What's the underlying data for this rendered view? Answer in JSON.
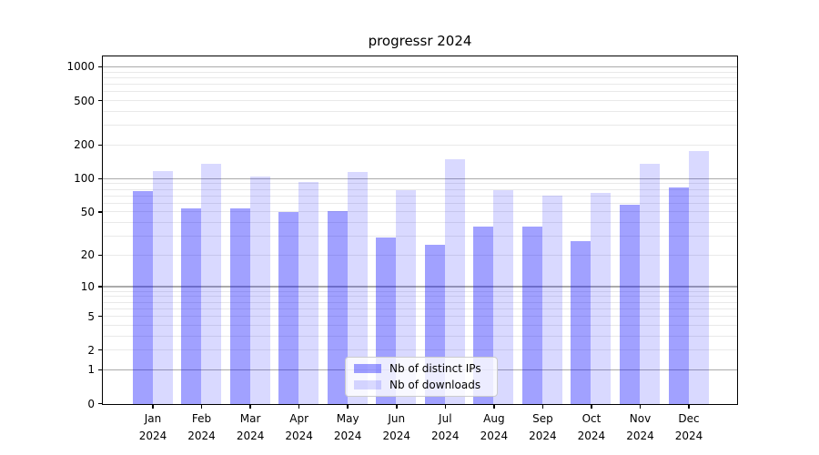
{
  "title": "progressr 2024",
  "legend": {
    "items": [
      {
        "label": "Nb of distinct IPs"
      },
      {
        "label": "Nb of downloads"
      }
    ]
  },
  "chart_data": {
    "type": "bar",
    "title": "progressr 2024",
    "categories": [
      "Jan",
      "Feb",
      "Mar",
      "Apr",
      "May",
      "Jun",
      "Jul",
      "Aug",
      "Sep",
      "Oct",
      "Nov",
      "Dec"
    ],
    "category_year": "2024",
    "series": [
      {
        "name": "Nb of distinct IPs",
        "color": "rgba(0,0,255,0.37)",
        "values": [
          77,
          54,
          54,
          50,
          51,
          29,
          25,
          37,
          37,
          27,
          58,
          83
        ]
      },
      {
        "name": "Nb of downloads",
        "color": "rgba(0,0,255,0.15)",
        "values": [
          117,
          137,
          104,
          94,
          114,
          78,
          148,
          78,
          70,
          75,
          135,
          176
        ]
      }
    ],
    "y_axis": {
      "scale": "log10(value+1)",
      "tick_values": [
        0,
        1,
        2,
        5,
        10,
        20,
        50,
        100,
        200,
        500,
        1000
      ],
      "major_gridlines": [
        1,
        10,
        100,
        1000
      ],
      "minor_gridlines": [
        2,
        3,
        4,
        5,
        6,
        7,
        8,
        9,
        20,
        30,
        40,
        50,
        60,
        70,
        80,
        90,
        200,
        300,
        400,
        500,
        600,
        700,
        800,
        900
      ],
      "ylim": [
        0,
        1280
      ]
    },
    "grid": true,
    "legend_position": "lower center",
    "colors": {
      "axis": "#000000",
      "major_grid": "#ababab",
      "minor_grid": "#e9e9e9",
      "text": "#000000",
      "legend_border": "#cccccc"
    }
  }
}
